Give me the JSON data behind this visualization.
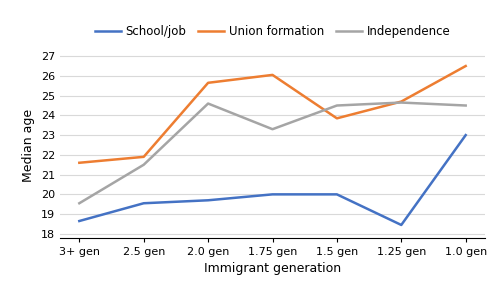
{
  "categories": [
    "3+ gen",
    "2.5 gen",
    "2.0 gen",
    "1.75 gen",
    "1.5 gen",
    "1.25 gen",
    "1.0 gen"
  ],
  "school_job": [
    18.65,
    19.55,
    19.7,
    20.0,
    20.0,
    18.45,
    23.0
  ],
  "union_formation": [
    21.6,
    21.9,
    25.65,
    26.05,
    23.85,
    24.7,
    26.5
  ],
  "independence": [
    19.55,
    21.5,
    24.6,
    23.3,
    24.5,
    24.65,
    24.5
  ],
  "school_job_color": "#4472C4",
  "union_formation_color": "#ED7D31",
  "independence_color": "#A5A5A5",
  "xlabel": "Immigrant generation",
  "ylabel": "Median age",
  "ylim": [
    17.8,
    27.2
  ],
  "yticks": [
    18,
    19,
    20,
    21,
    22,
    23,
    24,
    25,
    26,
    27
  ],
  "legend_labels": [
    "School/job",
    "Union formation",
    "Independence"
  ],
  "line_width": 1.8,
  "background_color": "#ffffff",
  "grid_color": "#d9d9d9"
}
